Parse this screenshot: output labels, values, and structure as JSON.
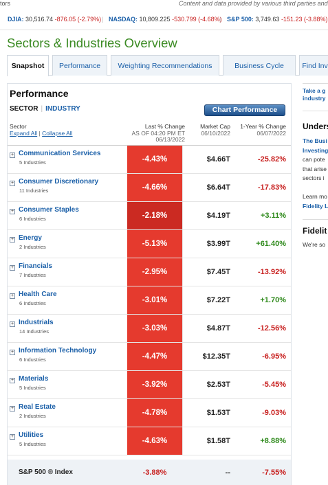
{
  "topline": {
    "left": "tors",
    "right": "Content and data provided by various third parties and F"
  },
  "ticker": [
    {
      "name": "DJIA:",
      "value": "30,516.74",
      "change": "-876.05 (-2.79%)"
    },
    {
      "name": "NASDAQ:",
      "value": "10,809.225",
      "change": "-530.799 (-4.68%)"
    },
    {
      "name": "S&P 500:",
      "value": "3,749.63",
      "change": "-151.23 (-3.88%)"
    }
  ],
  "page_title": "Sectors & Industries Overview",
  "tabs": [
    {
      "label": "Snapshot",
      "active": true
    },
    {
      "label": "Performance",
      "active": false
    },
    {
      "label": "Weighting Recommendations",
      "active": false
    },
    {
      "label": "Business Cycle",
      "active": false
    },
    {
      "label": "Find Inve",
      "active": false
    }
  ],
  "panel": {
    "title": "Performance",
    "sector_link": "SECTOR",
    "industry_link": "INDUSTRY",
    "chart_button": "Chart Performance"
  },
  "headers": {
    "sector": "Sector",
    "expand_all": "Expand All",
    "collapse_all": "Collapse All",
    "last_change": "Last % Change",
    "as_of": "AS OF 04:20 PM ET",
    "last_date": "06/13/2022",
    "market_cap": "Market Cap",
    "market_cap_date": "06/10/2022",
    "year_change": "1-Year % Change",
    "year_change_date": "06/07/2022"
  },
  "rows": [
    {
      "sector": "Communication Services",
      "industries": "5 Industries",
      "last": "-4.43%",
      "mcap": "$4.66T",
      "year": "-25.82%",
      "year_dir": "neg",
      "shade": "dark"
    },
    {
      "sector": "Consumer Discretionary",
      "industries": "11 Industries",
      "last": "-4.66%",
      "mcap": "$6.64T",
      "year": "-17.83%",
      "year_dir": "neg",
      "shade": "dark"
    },
    {
      "sector": "Consumer Staples",
      "industries": "6 Industries",
      "last": "-2.18%",
      "mcap": "$4.19T",
      "year": "+3.11%",
      "year_dir": "pos",
      "shade": "light"
    },
    {
      "sector": "Energy",
      "industries": "2 Industries",
      "last": "-5.13%",
      "mcap": "$3.99T",
      "year": "+61.40%",
      "year_dir": "pos",
      "shade": "dark"
    },
    {
      "sector": "Financials",
      "industries": "7 Industries",
      "last": "-2.95%",
      "mcap": "$7.45T",
      "year": "-13.92%",
      "year_dir": "neg",
      "shade": "dark"
    },
    {
      "sector": "Health Care",
      "industries": "6 Industries",
      "last": "-3.01%",
      "mcap": "$7.22T",
      "year": "+1.70%",
      "year_dir": "pos",
      "shade": "dark"
    },
    {
      "sector": "Industrials",
      "industries": "14 Industries",
      "last": "-3.03%",
      "mcap": "$4.87T",
      "year": "-12.56%",
      "year_dir": "neg",
      "shade": "dark"
    },
    {
      "sector": "Information Technology",
      "industries": "6 Industries",
      "last": "-4.47%",
      "mcap": "$12.35T",
      "year": "-6.95%",
      "year_dir": "neg",
      "shade": "dark"
    },
    {
      "sector": "Materials",
      "industries": "5 Industries",
      "last": "-3.92%",
      "mcap": "$2.53T",
      "year": "-5.45%",
      "year_dir": "neg",
      "shade": "dark"
    },
    {
      "sector": "Real Estate",
      "industries": "2 Industries",
      "last": "-4.78%",
      "mcap": "$1.53T",
      "year": "-9.03%",
      "year_dir": "neg",
      "shade": "dark"
    },
    {
      "sector": "Utilities",
      "industries": "5 Industries",
      "last": "-4.63%",
      "mcap": "$1.58T",
      "year": "+8.88%",
      "year_dir": "pos",
      "shade": "dark"
    }
  ],
  "sp500": {
    "name": "S&P 500 ® Index",
    "last": "-3.88%",
    "mcap": "--",
    "year": "-7.55%"
  },
  "sidebar": {
    "link1_a": "Take a g",
    "link1_b": "industry",
    "heading1": "Unders",
    "p_link_a": "The Busi",
    "p_link_b": "Investing",
    "p_line3": "can pote",
    "p_line4": "that arise",
    "p_line5": "sectors i",
    "learn_more": "Learn mo",
    "fidelity_link": "Fidelity L",
    "heading2": "Fidelit",
    "p2_line1": "We're so"
  },
  "colors": {
    "accent_green": "#3a8a22",
    "link_blue": "#1a5fa8",
    "negative_red": "#c8201f",
    "cell_red": "#e53a2e",
    "positive_green": "#2f8a1c"
  }
}
